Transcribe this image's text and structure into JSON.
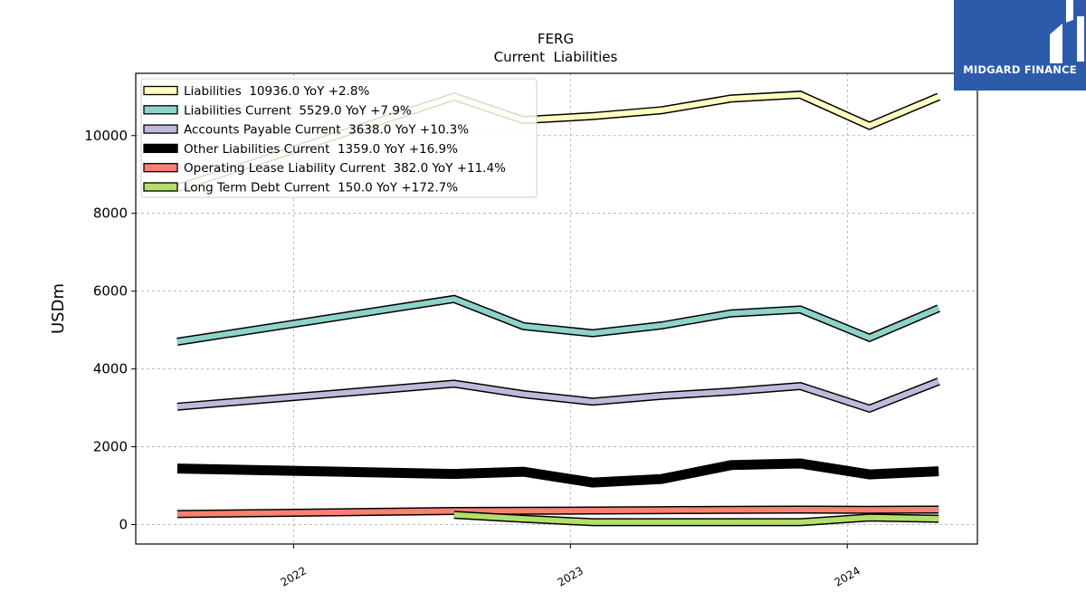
{
  "brand": {
    "name": "MIDGARD FINANCE",
    "logo_icon": "midgard-mark-icon",
    "color": "#2c5bab"
  },
  "chart_data": {
    "type": "line",
    "title": "FERG",
    "subtitle": "Current  Liabilities",
    "ylabel": "USDm",
    "xlabel": "",
    "ylim": [
      -500,
      11600
    ],
    "xlim": [
      2021.43,
      2024.47
    ],
    "yticks": [
      0,
      2000,
      4000,
      6000,
      8000,
      10000
    ],
    "xticks": [
      2022,
      2023,
      2024
    ],
    "grid": true,
    "legend_position": "top-left",
    "series": [
      {
        "name": "Liabilities",
        "legend": "Liabilities  10936.0 YoY +2.8%",
        "color": "#ffffbf",
        "x": [
          2021.58,
          2022.58,
          2022.83,
          2023.08,
          2023.33,
          2023.58,
          2023.83,
          2024.08,
          2024.33
        ],
        "y": [
          8650,
          11000,
          10400,
          10500,
          10650,
          10950,
          11050,
          10250,
          11000
        ]
      },
      {
        "name": "Liabilities Current",
        "legend": "Liabilities Current  5529.0 YoY +7.9%",
        "color": "#8dd3c7",
        "x": [
          2021.58,
          2022.58,
          2022.83,
          2023.08,
          2023.33,
          2023.58,
          2023.83,
          2024.08,
          2024.33
        ],
        "y": [
          4700,
          5800,
          5100,
          4920,
          5120,
          5430,
          5530,
          4800,
          5560
        ]
      },
      {
        "name": "Accounts Payable Current",
        "legend": "Accounts Payable Current  3638.0 YoY +10.3%",
        "color": "#bebada",
        "x": [
          2021.58,
          2022.58,
          2022.83,
          2023.08,
          2023.33,
          2023.58,
          2023.83,
          2024.08,
          2024.33
        ],
        "y": [
          3030,
          3620,
          3350,
          3160,
          3310,
          3420,
          3560,
          2980,
          3680
        ]
      },
      {
        "name": "Other Liabilities Current",
        "legend": "Other Liabilities Current  1359.0 YoY +16.9%",
        "color": "#000000",
        "x": [
          2021.58,
          2022.58,
          2022.83,
          2023.08,
          2023.33,
          2023.58,
          2023.83,
          2024.08,
          2024.33
        ],
        "y": [
          1440,
          1300,
          1360,
          1080,
          1170,
          1530,
          1570,
          1290,
          1370
        ]
      },
      {
        "name": "Operating Lease Liability Current",
        "legend": "Operating Lease Liability Current  382.0 YoY +11.4%",
        "color": "#fb8072",
        "x": [
          2021.58,
          2022.58,
          2022.83,
          2023.08,
          2023.33,
          2023.58,
          2023.83,
          2024.08,
          2024.33
        ],
        "y": [
          270,
          350,
          355,
          360,
          370,
          380,
          385,
          380,
          385
        ]
      },
      {
        "name": "Long Term Debt Current",
        "legend": "Long Term Debt Current  150.0 YoY +172.7%",
        "color": "#b3de69",
        "x": [
          2022.58,
          2022.83,
          2023.08,
          2023.33,
          2023.58,
          2023.83,
          2024.08,
          2024.33
        ],
        "y": [
          250,
          150,
          60,
          60,
          60,
          60,
          180,
          150
        ]
      }
    ]
  }
}
